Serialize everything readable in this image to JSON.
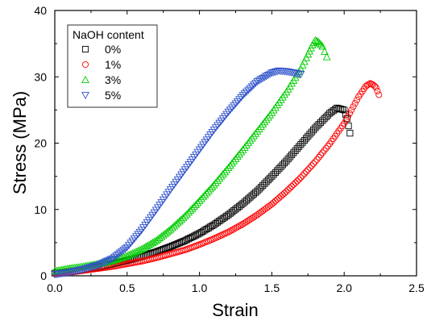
{
  "chart_data": {
    "type": "scatter",
    "title": "",
    "xlabel": "Strain",
    "ylabel": "Stress (MPa)",
    "xlim": [
      0,
      2.5
    ],
    "ylim": [
      0,
      40
    ],
    "x_ticks": [
      "0.0",
      "0.5",
      "1.0",
      "1.5",
      "2.0",
      "2.5"
    ],
    "y_ticks": [
      "0",
      "10",
      "20",
      "30",
      "40"
    ],
    "legend": {
      "title": "NaOH content",
      "position": "top-left"
    },
    "series": [
      {
        "name": "0%",
        "marker": "square",
        "color": "#000000",
        "points": [
          [
            0.0,
            0.4
          ],
          [
            0.1,
            0.6
          ],
          [
            0.2,
            0.9
          ],
          [
            0.3,
            1.3
          ],
          [
            0.4,
            1.8
          ],
          [
            0.5,
            2.3
          ],
          [
            0.6,
            2.9
          ],
          [
            0.7,
            3.6
          ],
          [
            0.8,
            4.4
          ],
          [
            0.9,
            5.3
          ],
          [
            1.0,
            6.4
          ],
          [
            1.1,
            7.7
          ],
          [
            1.2,
            9.2
          ],
          [
            1.3,
            10.9
          ],
          [
            1.4,
            12.8
          ],
          [
            1.5,
            15.0
          ],
          [
            1.6,
            17.3
          ],
          [
            1.7,
            19.8
          ],
          [
            1.8,
            22.3
          ],
          [
            1.9,
            24.5
          ],
          [
            1.95,
            25.3
          ],
          [
            2.0,
            25.0
          ],
          [
            2.02,
            23.7
          ],
          [
            2.04,
            21.5
          ]
        ]
      },
      {
        "name": "1%",
        "marker": "circle",
        "color": "#ff0000",
        "points": [
          [
            0.0,
            0.3
          ],
          [
            0.1,
            0.5
          ],
          [
            0.2,
            0.8
          ],
          [
            0.3,
            1.1
          ],
          [
            0.4,
            1.4
          ],
          [
            0.5,
            1.8
          ],
          [
            0.6,
            2.2
          ],
          [
            0.7,
            2.7
          ],
          [
            0.8,
            3.3
          ],
          [
            0.9,
            3.9
          ],
          [
            1.0,
            4.7
          ],
          [
            1.1,
            5.6
          ],
          [
            1.2,
            6.6
          ],
          [
            1.3,
            7.8
          ],
          [
            1.4,
            9.2
          ],
          [
            1.5,
            10.8
          ],
          [
            1.6,
            12.7
          ],
          [
            1.7,
            14.8
          ],
          [
            1.8,
            17.2
          ],
          [
            1.9,
            19.9
          ],
          [
            2.0,
            23.0
          ],
          [
            2.05,
            25.0
          ],
          [
            2.1,
            27.0
          ],
          [
            2.15,
            28.6
          ],
          [
            2.18,
            29.0
          ],
          [
            2.2,
            28.8
          ],
          [
            2.22,
            28.4
          ],
          [
            2.24,
            27.3
          ]
        ]
      },
      {
        "name": "3%",
        "marker": "triangle-up",
        "color": "#00cc00",
        "points": [
          [
            0.0,
            0.7
          ],
          [
            0.1,
            1.1
          ],
          [
            0.2,
            1.4
          ],
          [
            0.3,
            1.8
          ],
          [
            0.4,
            2.3
          ],
          [
            0.5,
            3.0
          ],
          [
            0.6,
            4.0
          ],
          [
            0.7,
            5.3
          ],
          [
            0.8,
            7.0
          ],
          [
            0.9,
            9.0
          ],
          [
            1.0,
            11.3
          ],
          [
            1.1,
            13.7
          ],
          [
            1.2,
            16.3
          ],
          [
            1.3,
            19.0
          ],
          [
            1.4,
            21.8
          ],
          [
            1.5,
            24.6
          ],
          [
            1.6,
            27.7
          ],
          [
            1.7,
            31.2
          ],
          [
            1.75,
            33.4
          ],
          [
            1.78,
            34.8
          ],
          [
            1.8,
            35.5
          ],
          [
            1.82,
            35.3
          ],
          [
            1.85,
            34.6
          ],
          [
            1.88,
            33.0
          ]
        ]
      },
      {
        "name": "5%",
        "marker": "triangle-down",
        "color": "#3355cc",
        "points": [
          [
            0.0,
            0.2
          ],
          [
            0.1,
            0.5
          ],
          [
            0.2,
            1.0
          ],
          [
            0.3,
            1.6
          ],
          [
            0.4,
            2.6
          ],
          [
            0.5,
            4.3
          ],
          [
            0.6,
            6.9
          ],
          [
            0.7,
            9.9
          ],
          [
            0.8,
            13.0
          ],
          [
            0.9,
            16.0
          ],
          [
            1.0,
            19.0
          ],
          [
            1.1,
            22.0
          ],
          [
            1.2,
            24.7
          ],
          [
            1.3,
            27.2
          ],
          [
            1.4,
            29.3
          ],
          [
            1.5,
            30.6
          ],
          [
            1.55,
            30.9
          ],
          [
            1.6,
            30.8
          ],
          [
            1.65,
            30.6
          ],
          [
            1.7,
            30.4
          ]
        ]
      }
    ]
  }
}
